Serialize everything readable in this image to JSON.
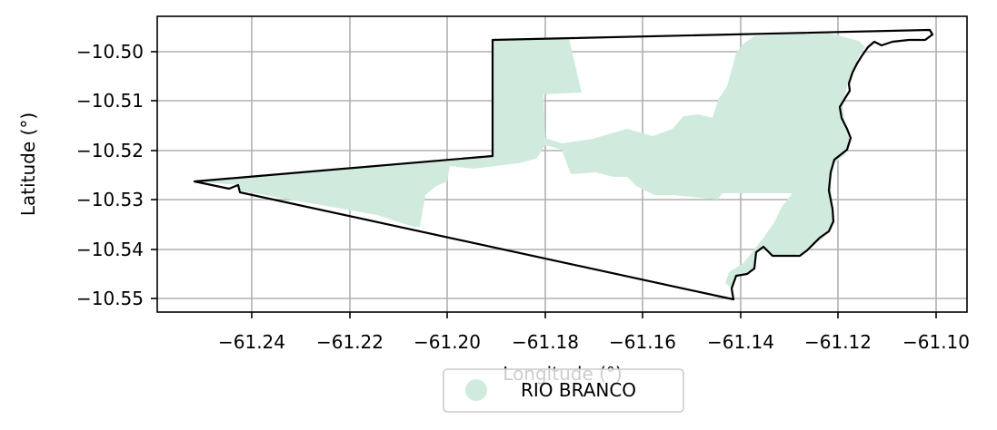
{
  "map": {
    "xlabel": "Longitude (°)",
    "ylabel": "Latitude (°)",
    "x_ticks": [
      "−61.24",
      "−61.22",
      "−61.20",
      "−61.18",
      "−61.16",
      "−61.14",
      "−61.12",
      "−61.10"
    ],
    "y_ticks": [
      "−10.50",
      "−10.51",
      "−10.52",
      "−10.53",
      "−10.54",
      "−10.55"
    ],
    "grid": true,
    "legend": {
      "placement": "bottom-center",
      "entries": [
        {
          "label": "RIO BRANCO",
          "color": "#d0ebde"
        }
      ]
    },
    "colors": {
      "fill": "#d0ebde",
      "boundary": "#000000",
      "grid": "#b0b0b0"
    }
  }
}
